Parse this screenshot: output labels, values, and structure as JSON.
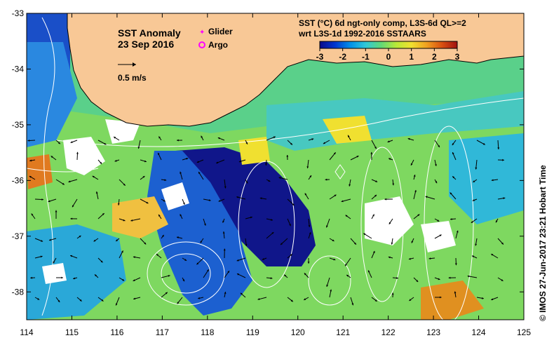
{
  "map": {
    "title": "SST Anomaly",
    "date": "23 Sep 2016",
    "vector_scale_label": "0.5 m/s",
    "legend": {
      "glider": "Glider",
      "argo": "Argo",
      "glider_color": "#ff00ff",
      "argo_color": "#ff00ff"
    },
    "product_line1": "SST (°C) 6d ngt-only comp, L3S-6d QL>=2",
    "product_line2": "wrt L3S-1d 1992-2016 SSTAARS",
    "colorbar": {
      "ticks": [
        "-3",
        "-2",
        "-1",
        "0",
        "1",
        "2",
        "3"
      ],
      "min": -3,
      "max": 3,
      "colors": [
        "#0a0a8a",
        "#0036d0",
        "#0090e8",
        "#30c8d8",
        "#60d878",
        "#b8e838",
        "#f0e030",
        "#f0a020",
        "#d85010",
        "#a01010"
      ]
    },
    "credit": "© IMOS 27-Jun-2017 23:21 Hobart Time",
    "lon_ticks": [
      "114",
      "115",
      "116",
      "117",
      "118",
      "119",
      "120",
      "121",
      "122",
      "123",
      "124",
      "125"
    ],
    "lat_ticks": [
      "-33",
      "-34",
      "-35",
      "-36",
      "-37",
      "-38"
    ],
    "lon_range": [
      114,
      125
    ],
    "lat_range": [
      -38.5,
      -33
    ],
    "land_color": "#f8c896"
  }
}
